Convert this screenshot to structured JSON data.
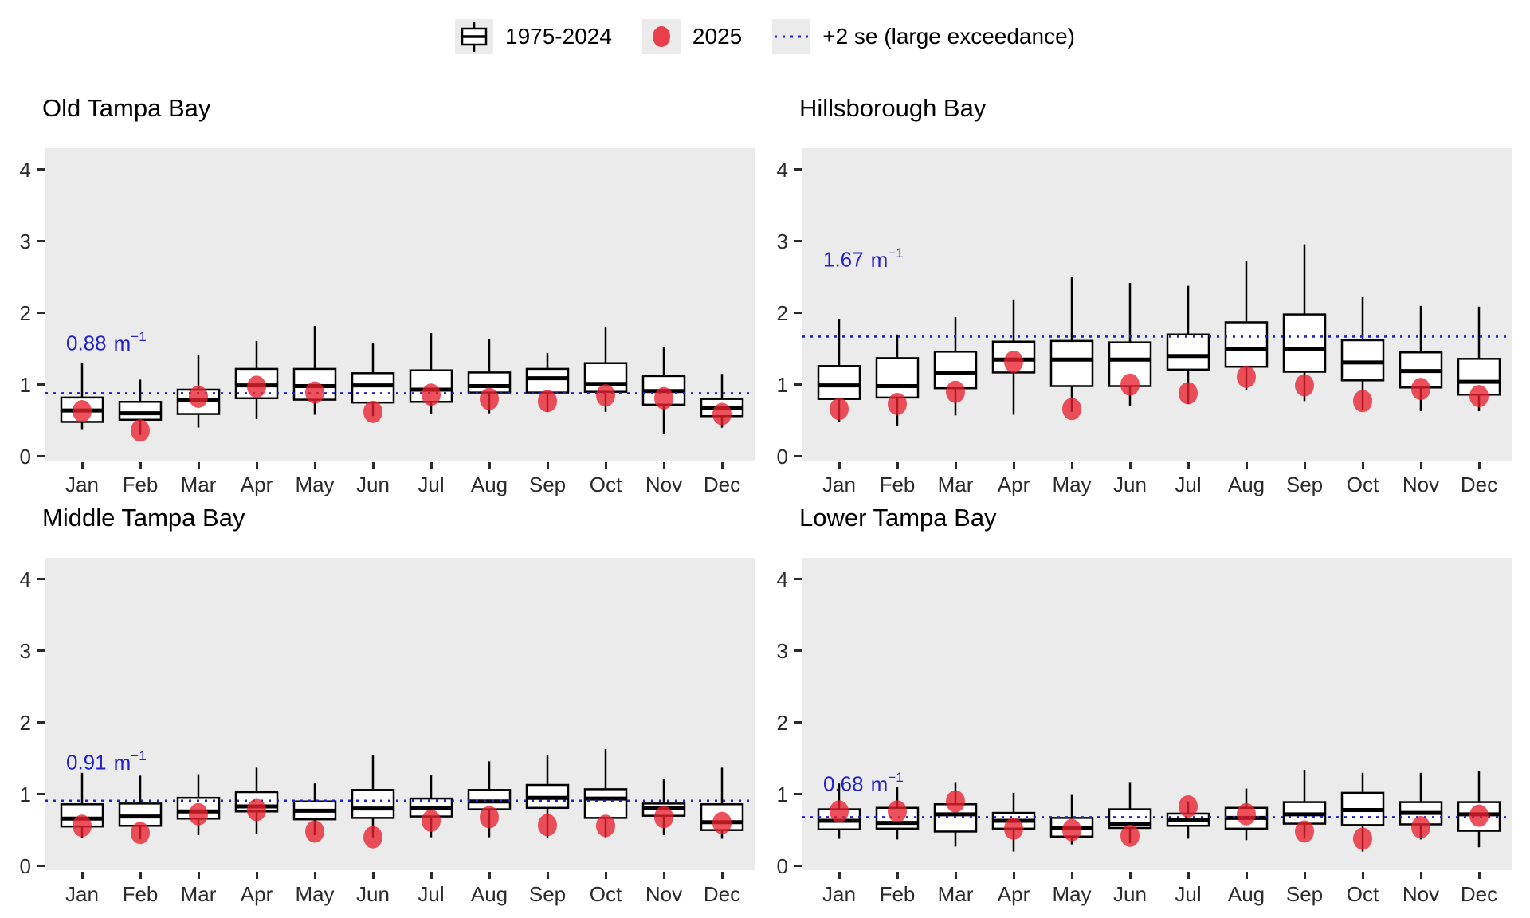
{
  "legend": {
    "items": [
      {
        "key": "boxplot-key",
        "label": "1975-2024"
      },
      {
        "key": "red-dot-key",
        "label": "2025"
      },
      {
        "key": "dotted-line-key",
        "label": "+2 se (large exceedance)"
      }
    ]
  },
  "units": {
    "unit": "m",
    "exponent": "−1"
  },
  "colors": {
    "panel_bg": "#ebebeb",
    "box_fill": "#ffffff",
    "box_stroke": "#000000",
    "point": "#e8212e",
    "threshold": "#2222cc",
    "axis_text": "#2b2b2b"
  },
  "chart_data": {
    "type": "boxplot",
    "ylim": [
      0,
      4.3
    ],
    "y_ticks": [
      0,
      1,
      2,
      3,
      4
    ],
    "months": [
      "Jan",
      "Feb",
      "Mar",
      "Apr",
      "May",
      "Jun",
      "Jul",
      "Aug",
      "Sep",
      "Oct",
      "Nov",
      "Dec"
    ],
    "series_names": [
      "1975-2024",
      "2025"
    ],
    "legend_position": "top-center",
    "grid": false,
    "panels": [
      {
        "title": "Old Tampa Bay",
        "threshold": 0.88,
        "threshold_label": "0.88",
        "label_y": 1.56,
        "box_1975_2024": [
          [
            0.38,
            0.48,
            0.64,
            0.82,
            1.31
          ],
          [
            0.3,
            0.51,
            0.6,
            0.76,
            1.07
          ],
          [
            0.4,
            0.59,
            0.78,
            0.93,
            1.42
          ],
          [
            0.52,
            0.81,
            0.99,
            1.22,
            1.61
          ],
          [
            0.58,
            0.79,
            0.98,
            1.22,
            1.82
          ],
          [
            0.56,
            0.75,
            0.99,
            1.16,
            1.58
          ],
          [
            0.59,
            0.76,
            0.93,
            1.2,
            1.72
          ],
          [
            0.6,
            0.89,
            0.98,
            1.17,
            1.64
          ],
          [
            0.62,
            0.89,
            1.09,
            1.22,
            1.44
          ],
          [
            0.62,
            0.9,
            1.01,
            1.3,
            1.81
          ],
          [
            0.31,
            0.72,
            0.91,
            1.12,
            1.53
          ],
          [
            0.4,
            0.56,
            0.67,
            0.8,
            1.15
          ]
        ],
        "points_2025": [
          0.63,
          0.36,
          0.83,
          0.97,
          0.89,
          0.62,
          0.86,
          0.8,
          0.77,
          0.85,
          0.81,
          0.59
        ]
      },
      {
        "title": "Hillsborough Bay",
        "threshold": 1.67,
        "threshold_label": "1.67",
        "label_y": 2.73,
        "box_1975_2024": [
          [
            0.48,
            0.8,
            0.99,
            1.26,
            1.92
          ],
          [
            0.43,
            0.82,
            0.98,
            1.37,
            1.7
          ],
          [
            0.57,
            0.95,
            1.16,
            1.46,
            1.94
          ],
          [
            0.58,
            1.17,
            1.35,
            1.6,
            2.19
          ],
          [
            0.62,
            0.98,
            1.35,
            1.61,
            2.5
          ],
          [
            0.7,
            0.98,
            1.35,
            1.59,
            2.42
          ],
          [
            0.73,
            1.21,
            1.4,
            1.7,
            2.38
          ],
          [
            0.93,
            1.25,
            1.5,
            1.87,
            2.72
          ],
          [
            0.77,
            1.18,
            1.5,
            1.98,
            2.96
          ],
          [
            0.64,
            1.06,
            1.31,
            1.62,
            2.22
          ],
          [
            0.63,
            0.96,
            1.19,
            1.45,
            2.1
          ],
          [
            0.63,
            0.86,
            1.04,
            1.36,
            2.09
          ]
        ],
        "points_2025": [
          0.66,
          0.73,
          0.9,
          1.32,
          0.66,
          1.0,
          0.88,
          1.11,
          0.99,
          0.77,
          0.94,
          0.84
        ]
      },
      {
        "title": "Middle Tampa Bay",
        "threshold": 0.91,
        "threshold_label": "0.91",
        "label_y": 1.43,
        "box_1975_2024": [
          [
            0.39,
            0.55,
            0.66,
            0.86,
            1.3
          ],
          [
            0.37,
            0.56,
            0.69,
            0.87,
            1.26
          ],
          [
            0.43,
            0.66,
            0.76,
            0.95,
            1.28
          ],
          [
            0.45,
            0.76,
            0.83,
            1.03,
            1.37
          ],
          [
            0.43,
            0.65,
            0.77,
            0.9,
            1.15
          ],
          [
            0.4,
            0.67,
            0.8,
            1.06,
            1.54
          ],
          [
            0.4,
            0.69,
            0.81,
            0.94,
            1.27
          ],
          [
            0.4,
            0.79,
            0.9,
            1.06,
            1.46
          ],
          [
            0.39,
            0.81,
            0.95,
            1.13,
            1.55
          ],
          [
            0.4,
            0.67,
            0.94,
            1.07,
            1.63
          ],
          [
            0.43,
            0.7,
            0.81,
            0.87,
            1.21
          ],
          [
            0.38,
            0.5,
            0.61,
            0.86,
            1.37
          ]
        ],
        "points_2025": [
          0.56,
          0.46,
          0.72,
          0.78,
          0.48,
          0.4,
          0.63,
          0.68,
          0.57,
          0.56,
          0.68,
          0.6
        ]
      },
      {
        "title": "Lower Tampa Bay",
        "threshold": 0.68,
        "threshold_label": "0.68",
        "label_y": 1.13,
        "box_1975_2024": [
          [
            0.38,
            0.51,
            0.63,
            0.79,
            1.15
          ],
          [
            0.37,
            0.52,
            0.6,
            0.81,
            1.1
          ],
          [
            0.27,
            0.48,
            0.72,
            0.86,
            1.17
          ],
          [
            0.2,
            0.52,
            0.63,
            0.74,
            1.02
          ],
          [
            0.3,
            0.41,
            0.53,
            0.67,
            0.99
          ],
          [
            0.32,
            0.53,
            0.58,
            0.79,
            1.17
          ],
          [
            0.38,
            0.56,
            0.64,
            0.73,
            0.9
          ],
          [
            0.36,
            0.52,
            0.67,
            0.81,
            1.08
          ],
          [
            0.38,
            0.59,
            0.72,
            0.89,
            1.34
          ],
          [
            0.2,
            0.57,
            0.78,
            1.02,
            1.3
          ],
          [
            0.37,
            0.58,
            0.74,
            0.89,
            1.3
          ],
          [
            0.26,
            0.49,
            0.72,
            0.89,
            1.33
          ]
        ],
        "points_2025": [
          0.76,
          0.76,
          0.9,
          0.52,
          0.5,
          0.42,
          0.83,
          0.72,
          0.48,
          0.38,
          0.54,
          0.7
        ]
      }
    ]
  }
}
